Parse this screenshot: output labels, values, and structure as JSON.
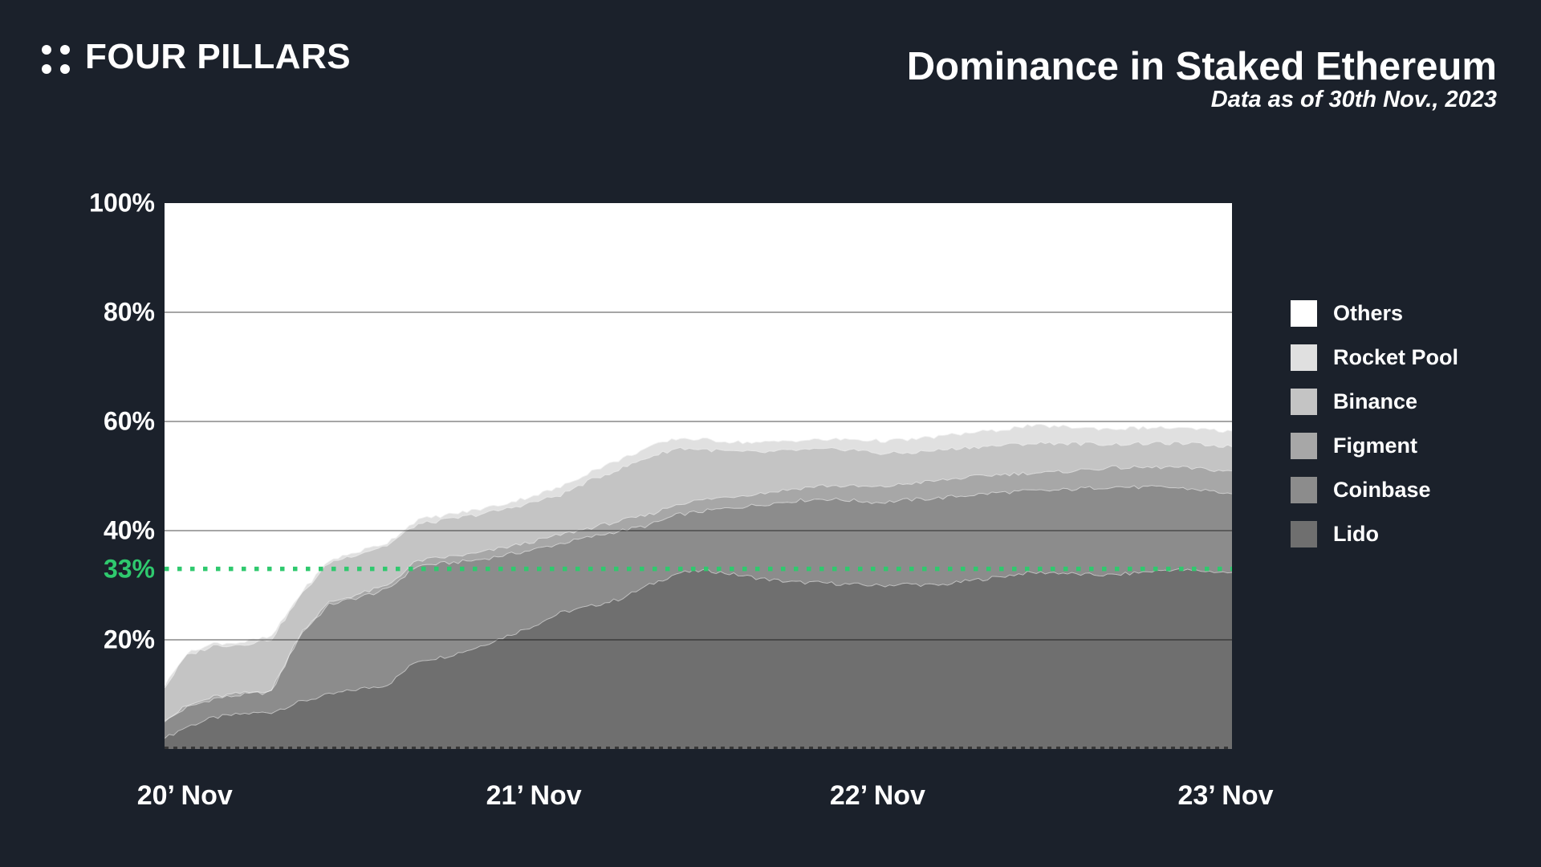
{
  "app": {
    "logo_text": "FOUR PILLARS",
    "title": "Dominance in Staked Ethereum",
    "subtitle": "Data as of 30th Nov., 2023"
  },
  "colors": {
    "background": "#1b212b",
    "text": "#ffffff",
    "plot_background": "#ffffff",
    "accent_green": "#2fc96e",
    "gridline_overlay": "rgba(0,0,0,0.35)"
  },
  "legend": {
    "items": [
      {
        "label": "Others",
        "color": "#ffffff"
      },
      {
        "label": "Rocket Pool",
        "color": "#e0e0e0"
      },
      {
        "label": "Binance",
        "color": "#c4c4c4"
      },
      {
        "label": "Figment",
        "color": "#a7a7a7"
      },
      {
        "label": "Coinbase",
        "color": "#8c8c8c"
      },
      {
        "label": "Lido",
        "color": "#6f6f6f"
      }
    ]
  },
  "chart_data": {
    "type": "area",
    "stacked": true,
    "title": "Dominance in Staked Ethereum",
    "subtitle": "Data as of 30th Nov., 2023",
    "x_axis": {
      "meaning": "time, Nov 2020 through Nov 2023",
      "tick_labels": [
        "20’ Nov",
        "21’ Nov",
        "22’ Nov",
        "23’ Nov"
      ],
      "tick_positions": [
        0.019,
        0.346,
        0.668,
        0.994
      ]
    },
    "y_axis": {
      "unit": "%",
      "range": [
        0,
        100
      ],
      "ticks": [
        100,
        80,
        60,
        40,
        20
      ],
      "gridlines": [
        80,
        60,
        40,
        20
      ],
      "grid_on": true
    },
    "threshold_line": {
      "value": 33,
      "label": "33%",
      "color": "#2fc96e",
      "style": "dotted"
    },
    "legend_position": "right",
    "x": [
      0,
      0.019,
      0.046,
      0.073,
      0.1,
      0.127,
      0.154,
      0.181,
      0.209,
      0.236,
      0.263,
      0.29,
      0.317,
      0.344,
      0.371,
      0.399,
      0.426,
      0.453,
      0.481,
      0.508,
      0.535,
      0.562,
      0.589,
      0.616,
      0.643,
      0.67,
      0.697,
      0.724,
      0.751,
      0.779,
      0.806,
      0.833,
      0.86,
      0.887,
      0.914,
      0.941,
      0.968,
      0.996,
      1
    ],
    "series": [
      {
        "name": "Lido",
        "color": "#6f6f6f",
        "values": [
          2.0,
          4.0,
          5.8,
          6.5,
          6.8,
          8.7,
          10.0,
          11.0,
          11.8,
          16.2,
          17.0,
          18.5,
          20.5,
          22.5,
          25.0,
          26.2,
          27.5,
          30.0,
          32.3,
          32.8,
          32.0,
          31.2,
          30.6,
          30.5,
          30.2,
          30.0,
          30.3,
          30.0,
          30.8,
          31.5,
          32.3,
          32.4,
          32.0,
          31.9,
          32.4,
          32.9,
          32.7,
          32.4,
          32.4
        ]
      },
      {
        "name": "Coinbase",
        "color": "#8c8c8c",
        "values": [
          3.0,
          3.5,
          3.5,
          3.5,
          3.7,
          12.3,
          16.5,
          16.8,
          17.5,
          17.4,
          17.1,
          16.1,
          15.0,
          14.0,
          12.7,
          12.7,
          12.5,
          11.0,
          10.7,
          10.9,
          12.3,
          13.7,
          14.9,
          15.4,
          15.4,
          15.2,
          15.4,
          16.0,
          15.7,
          15.5,
          15.0,
          15.0,
          15.8,
          16.2,
          15.6,
          15.1,
          14.9,
          14.5,
          14.4
        ]
      },
      {
        "name": "Figment",
        "color": "#a7a7a7",
        "values": [
          0.2,
          0.3,
          0.3,
          0.3,
          0.3,
          0.3,
          0.4,
          0.6,
          0.7,
          0.9,
          1.1,
          1.2,
          1.4,
          1.5,
          1.6,
          1.7,
          1.8,
          1.9,
          2.0,
          2.1,
          2.1,
          2.1,
          2.2,
          2.4,
          2.6,
          2.8,
          3.0,
          3.2,
          3.3,
          3.3,
          3.3,
          3.3,
          3.4,
          3.5,
          3.6,
          3.7,
          3.8,
          4.1,
          4.2
        ]
      },
      {
        "name": "Binance",
        "color": "#c4c4c4",
        "values": [
          6.0,
          9.2,
          9.4,
          8.9,
          9.4,
          6.8,
          7.3,
          7.4,
          7.4,
          6.7,
          6.8,
          7.1,
          7.0,
          7.2,
          7.3,
          8.7,
          9.5,
          10.6,
          10.2,
          9.1,
          8.1,
          7.4,
          7.1,
          6.6,
          6.8,
          6.2,
          5.6,
          5.6,
          5.5,
          5.3,
          5.4,
          5.4,
          4.8,
          4.3,
          4.4,
          4.4,
          4.5,
          4.5,
          4.4
        ]
      },
      {
        "name": "Rocket Pool",
        "color": "#e0e0e0",
        "values": [
          0.4,
          0.4,
          0.4,
          0.4,
          0.4,
          0.4,
          0.4,
          0.4,
          0.5,
          0.8,
          0.9,
          0.9,
          1.0,
          1.2,
          1.4,
          1.6,
          1.7,
          1.8,
          1.8,
          1.8,
          1.8,
          1.8,
          1.8,
          1.8,
          1.8,
          2.3,
          2.4,
          2.5,
          2.6,
          2.8,
          3.2,
          3.1,
          2.9,
          2.8,
          2.9,
          2.8,
          2.7,
          2.8,
          2.9
        ]
      },
      {
        "name": "Others",
        "color": "#ffffff",
        "note": "remainder to 100%, drawn as white background above the stack",
        "values": [
          88.4,
          82.6,
          80.6,
          80.4,
          79.4,
          71.5,
          65.4,
          63.8,
          62.1,
          58.0,
          57.1,
          56.2,
          55.1,
          53.6,
          52.0,
          49.1,
          47.0,
          44.7,
          43.0,
          43.3,
          43.7,
          43.8,
          43.4,
          43.3,
          43.2,
          43.5,
          43.3,
          42.7,
          42.1,
          41.6,
          40.8,
          40.8,
          41.1,
          41.3,
          41.1,
          41.1,
          41.4,
          41.7,
          41.7
        ]
      }
    ]
  }
}
